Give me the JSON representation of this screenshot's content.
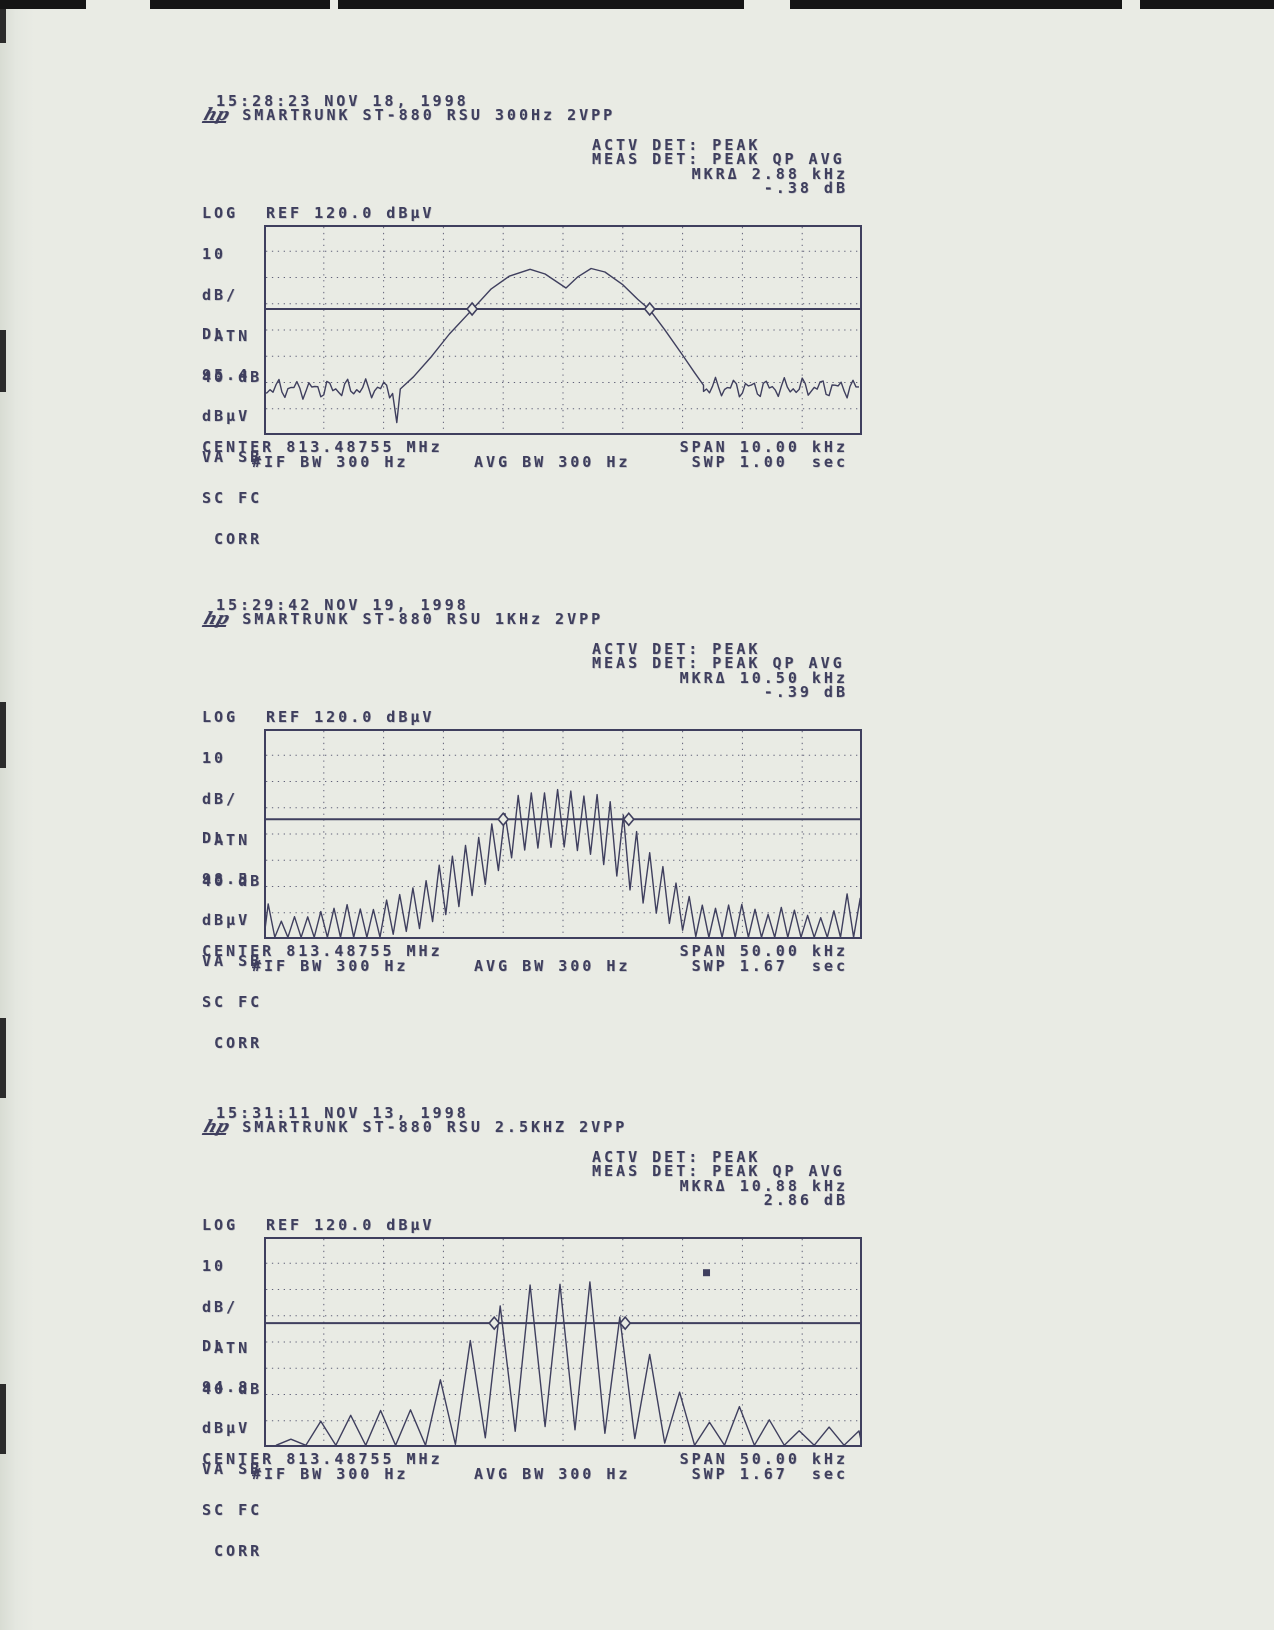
{
  "page": {
    "background": "#e9ebe4",
    "ink": "#3f3f5e"
  },
  "chart_data": [
    {
      "type": "line",
      "header": {
        "timestamp": "15:28:23 NOV 18, 1998",
        "logo": "hp",
        "title": "SMARTRUNK ST-880 RSU 300Hz 2VPP",
        "actv_det": "ACTV DET: PEAK",
        "meas_det": "MEAS DET: PEAK QP AVG",
        "mkr_delta": "MKRΔ 2.88 kHz",
        "mkr_level": "-.38 dB"
      },
      "y_axis": {
        "log": "LOG",
        "ref": "REF 120.0 dBµV",
        "scale": [
          "10",
          "dB/",
          " ATN",
          "40 dB"
        ],
        "dl": [
          "DL",
          "95.4",
          "dBµV",
          "VA SB",
          "SC FC",
          " CORR"
        ]
      },
      "footer": {
        "center": "CENTER 813.48755 MHz",
        "span": "SPAN 10.00 kHz",
        "if_bw": "#IF BW 300 Hz",
        "avg_bw": "AVG BW 300 Hz",
        "sweep": "SWP 1.00  sec"
      },
      "axes": {
        "ref_dbuv": 120.0,
        "db_per_div": 10,
        "atten_db": 40,
        "dl_dbuv": 95.4,
        "center_mhz": 813.48755,
        "span_khz": 10.0,
        "if_bw_hz": 300,
        "avg_bw_hz": 300,
        "sweep_s": 1.0,
        "grid_cols": 10,
        "grid_rows": 8,
        "mkr_delta_khz": 2.88,
        "mkr_delta_db": -0.38
      },
      "plot": {
        "dl_frac": 0.4,
        "markers": [
          {
            "x": 0.348
          },
          {
            "x": 0.645
          }
        ],
        "trace": {
          "mode": "segments",
          "segments": [
            {
              "t": "noise",
              "x0": 0.0,
              "x1": 0.215,
              "base": 0.78,
              "amp": 0.05
            },
            {
              "t": "pts",
              "p": [
                [
                  0.215,
                  0.8
                ],
                [
                  0.222,
                  0.94
                ],
                [
                  0.228,
                  0.78
                ],
                [
                  0.25,
                  0.72
                ],
                [
                  0.28,
                  0.62
                ],
                [
                  0.31,
                  0.52
                ],
                [
                  0.348,
                  0.4
                ],
                [
                  0.38,
                  0.3
                ],
                [
                  0.41,
                  0.245
                ],
                [
                  0.445,
                  0.21
                ],
                [
                  0.47,
                  0.235
                ],
                [
                  0.505,
                  0.3
                ],
                [
                  0.525,
                  0.24
                ],
                [
                  0.547,
                  0.21
                ],
                [
                  0.57,
                  0.23
                ],
                [
                  0.6,
                  0.29
                ],
                [
                  0.625,
                  0.35
                ],
                [
                  0.645,
                  0.4
                ],
                [
                  0.67,
                  0.5
                ],
                [
                  0.7,
                  0.62
                ],
                [
                  0.72,
                  0.7
                ],
                [
                  0.735,
                  0.76
                ]
              ]
            },
            {
              "t": "noise",
              "x0": 0.735,
              "x1": 1.0,
              "base": 0.775,
              "amp": 0.05
            }
          ]
        }
      }
    },
    {
      "type": "line",
      "header": {
        "timestamp": "15:29:42 NOV 19, 1998",
        "logo": "hp",
        "title": "SMARTRUNK ST-880 RSU 1KHz 2VPP",
        "actv_det": "ACTV DET: PEAK",
        "meas_det": "MEAS DET: PEAK QP AVG",
        "mkr_delta": "MKRΔ 10.50 kHz",
        "mkr_level": "-.39 dB"
      },
      "y_axis": {
        "log": "LOG",
        "ref": "REF 120.0 dBµV",
        "scale": [
          "10",
          "dB/",
          " ATN",
          "40 dB"
        ],
        "dl": [
          "DL",
          "98.5",
          "dBµV",
          "VA SB",
          "SC FC",
          " CORR"
        ]
      },
      "footer": {
        "center": "CENTER 813.48755 MHz",
        "span": "SPAN 50.00 kHz",
        "if_bw": "#IF BW 300 Hz",
        "avg_bw": "AVG BW 300 Hz",
        "sweep": "SWP 1.67  sec"
      },
      "axes": {
        "ref_dbuv": 120.0,
        "db_per_div": 10,
        "atten_db": 40,
        "dl_dbuv": 98.5,
        "center_mhz": 813.48755,
        "span_khz": 50.0,
        "if_bw_hz": 300,
        "avg_bw_hz": 300,
        "sweep_s": 1.67,
        "grid_cols": 10,
        "grid_rows": 8,
        "mkr_delta_khz": 10.5,
        "mkr_delta_db": -0.39
      },
      "plot": {
        "dl_frac": 0.43,
        "markers": [
          {
            "x": 0.4
          },
          {
            "x": 0.61
          }
        ],
        "trace": {
          "mode": "comb",
          "spacing": 0.022,
          "phase": 0.007,
          "top": [
            [
              0,
              0.93
            ],
            [
              0.007,
              0.84
            ],
            [
              0.03,
              0.92
            ],
            [
              0.06,
              0.89
            ],
            [
              0.1,
              0.87
            ],
            [
              0.14,
              0.84
            ],
            [
              0.18,
              0.86
            ],
            [
              0.22,
              0.8
            ],
            [
              0.26,
              0.74
            ],
            [
              0.3,
              0.64
            ],
            [
              0.34,
              0.55
            ],
            [
              0.37,
              0.48
            ],
            [
              0.4,
              0.42
            ],
            [
              0.42,
              0.33
            ],
            [
              0.44,
              0.28
            ],
            [
              0.46,
              0.33
            ],
            [
              0.48,
              0.27
            ],
            [
              0.5,
              0.32
            ],
            [
              0.52,
              0.28
            ],
            [
              0.54,
              0.33
            ],
            [
              0.56,
              0.3
            ],
            [
              0.58,
              0.36
            ],
            [
              0.61,
              0.43
            ],
            [
              0.63,
              0.52
            ],
            [
              0.66,
              0.64
            ],
            [
              0.69,
              0.74
            ],
            [
              0.72,
              0.82
            ],
            [
              0.76,
              0.86
            ],
            [
              0.8,
              0.83
            ],
            [
              0.84,
              0.88
            ],
            [
              0.88,
              0.85
            ],
            [
              0.92,
              0.9
            ],
            [
              0.96,
              0.87
            ],
            [
              0.985,
              0.73
            ],
            [
              1,
              0.82
            ]
          ],
          "bottom": [
            [
              0,
              1
            ],
            [
              0.18,
              1
            ],
            [
              0.26,
              0.95
            ],
            [
              0.32,
              0.86
            ],
            [
              0.37,
              0.74
            ],
            [
              0.41,
              0.62
            ],
            [
              0.44,
              0.57
            ],
            [
              0.5,
              0.56
            ],
            [
              0.55,
              0.6
            ],
            [
              0.59,
              0.7
            ],
            [
              0.63,
              0.82
            ],
            [
              0.68,
              0.93
            ],
            [
              0.73,
              1
            ],
            [
              1,
              1
            ]
          ]
        }
      }
    },
    {
      "type": "line",
      "header": {
        "timestamp": "15:31:11 NOV 13, 1998",
        "logo": "hp",
        "title": "SMARTRUNK ST-880 RSU 2.5KHZ 2VPP",
        "actv_det": "ACTV DET: PEAK",
        "meas_det": "MEAS DET: PEAK QP AVG",
        "mkr_delta": "MKRΔ 10.88 kHz",
        "mkr_level": "2.86 dB"
      },
      "y_axis": {
        "log": "LOG",
        "ref": "REF 120.0 dBµV",
        "scale": [
          "10",
          "dB/",
          " ATN",
          "40 dB"
        ],
        "dl": [
          "DL",
          "94.8",
          "dBµV",
          "VA SB",
          "SC FC",
          " CORR"
        ]
      },
      "footer": {
        "center": "CENTER 813.48755 MHz",
        "span": "SPAN 50.00 kHz",
        "if_bw": "#IF BW 300 Hz",
        "avg_bw": "AVG BW 300 Hz",
        "sweep": "SWP 1.67  sec"
      },
      "axes": {
        "ref_dbuv": 120.0,
        "db_per_div": 10,
        "atten_db": 40,
        "dl_dbuv": 94.8,
        "center_mhz": 813.48755,
        "span_khz": 50.0,
        "if_bw_hz": 300,
        "avg_bw_hz": 300,
        "sweep_s": 1.67,
        "grid_cols": 10,
        "grid_rows": 8,
        "mkr_delta_khz": 10.88,
        "mkr_delta_db": 2.86
      },
      "plot": {
        "dl_frac": 0.41,
        "markers": [
          {
            "x": 0.385
          },
          {
            "x": 0.604
          }
        ],
        "dot_marker": {
          "x": 0.74,
          "y": 0.17
        },
        "trace": {
          "mode": "comb",
          "spacing": 0.05,
          "phase": 0.045,
          "top": [
            [
              0,
              1
            ],
            [
              0.045,
              0.96
            ],
            [
              0.095,
              0.88
            ],
            [
              0.145,
              0.85
            ],
            [
              0.195,
              0.82
            ],
            [
              0.245,
              0.83
            ],
            [
              0.295,
              0.68
            ],
            [
              0.34,
              0.5
            ],
            [
              0.39,
              0.35
            ],
            [
              0.44,
              0.23
            ],
            [
              0.49,
              0.215
            ],
            [
              0.545,
              0.225
            ],
            [
              0.595,
              0.38
            ],
            [
              0.645,
              0.55
            ],
            [
              0.695,
              0.75
            ],
            [
              0.745,
              0.88
            ],
            [
              0.795,
              0.8
            ],
            [
              0.845,
              0.88
            ],
            [
              0.895,
              0.92
            ],
            [
              0.945,
              0.9
            ],
            [
              0.995,
              0.93
            ]
          ],
          "bottom": [
            [
              0,
              1
            ],
            [
              0.3,
              1
            ],
            [
              0.38,
              0.95
            ],
            [
              0.46,
              0.9
            ],
            [
              0.56,
              0.93
            ],
            [
              0.64,
              0.97
            ],
            [
              0.72,
              1
            ],
            [
              1,
              1
            ]
          ]
        }
      }
    }
  ]
}
